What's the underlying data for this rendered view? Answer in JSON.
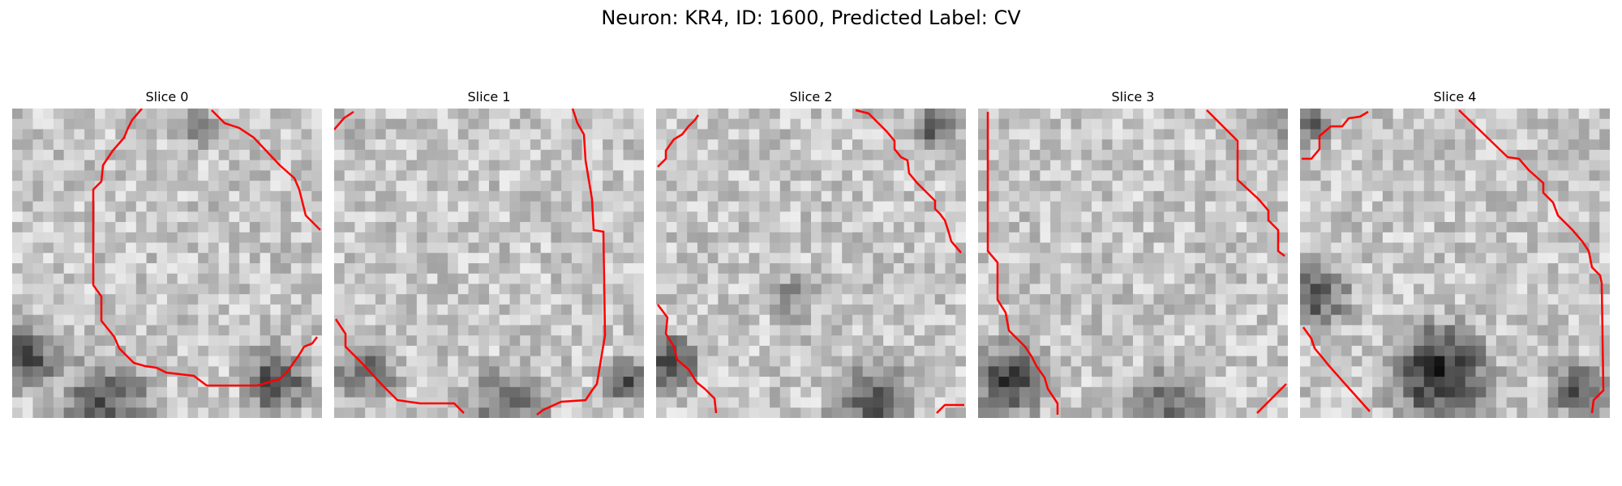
{
  "figure": {
    "title": "Neuron: KR4, ID: 1600, Predicted Label: CV"
  },
  "panels": [
    {
      "title": "Slice 0"
    },
    {
      "title": "Slice 1"
    },
    {
      "title": "Slice 2"
    },
    {
      "title": "Slice 3"
    },
    {
      "title": "Slice 4"
    }
  ],
  "colors": {
    "contour": "#ff0000",
    "background": "#ffffff"
  }
}
